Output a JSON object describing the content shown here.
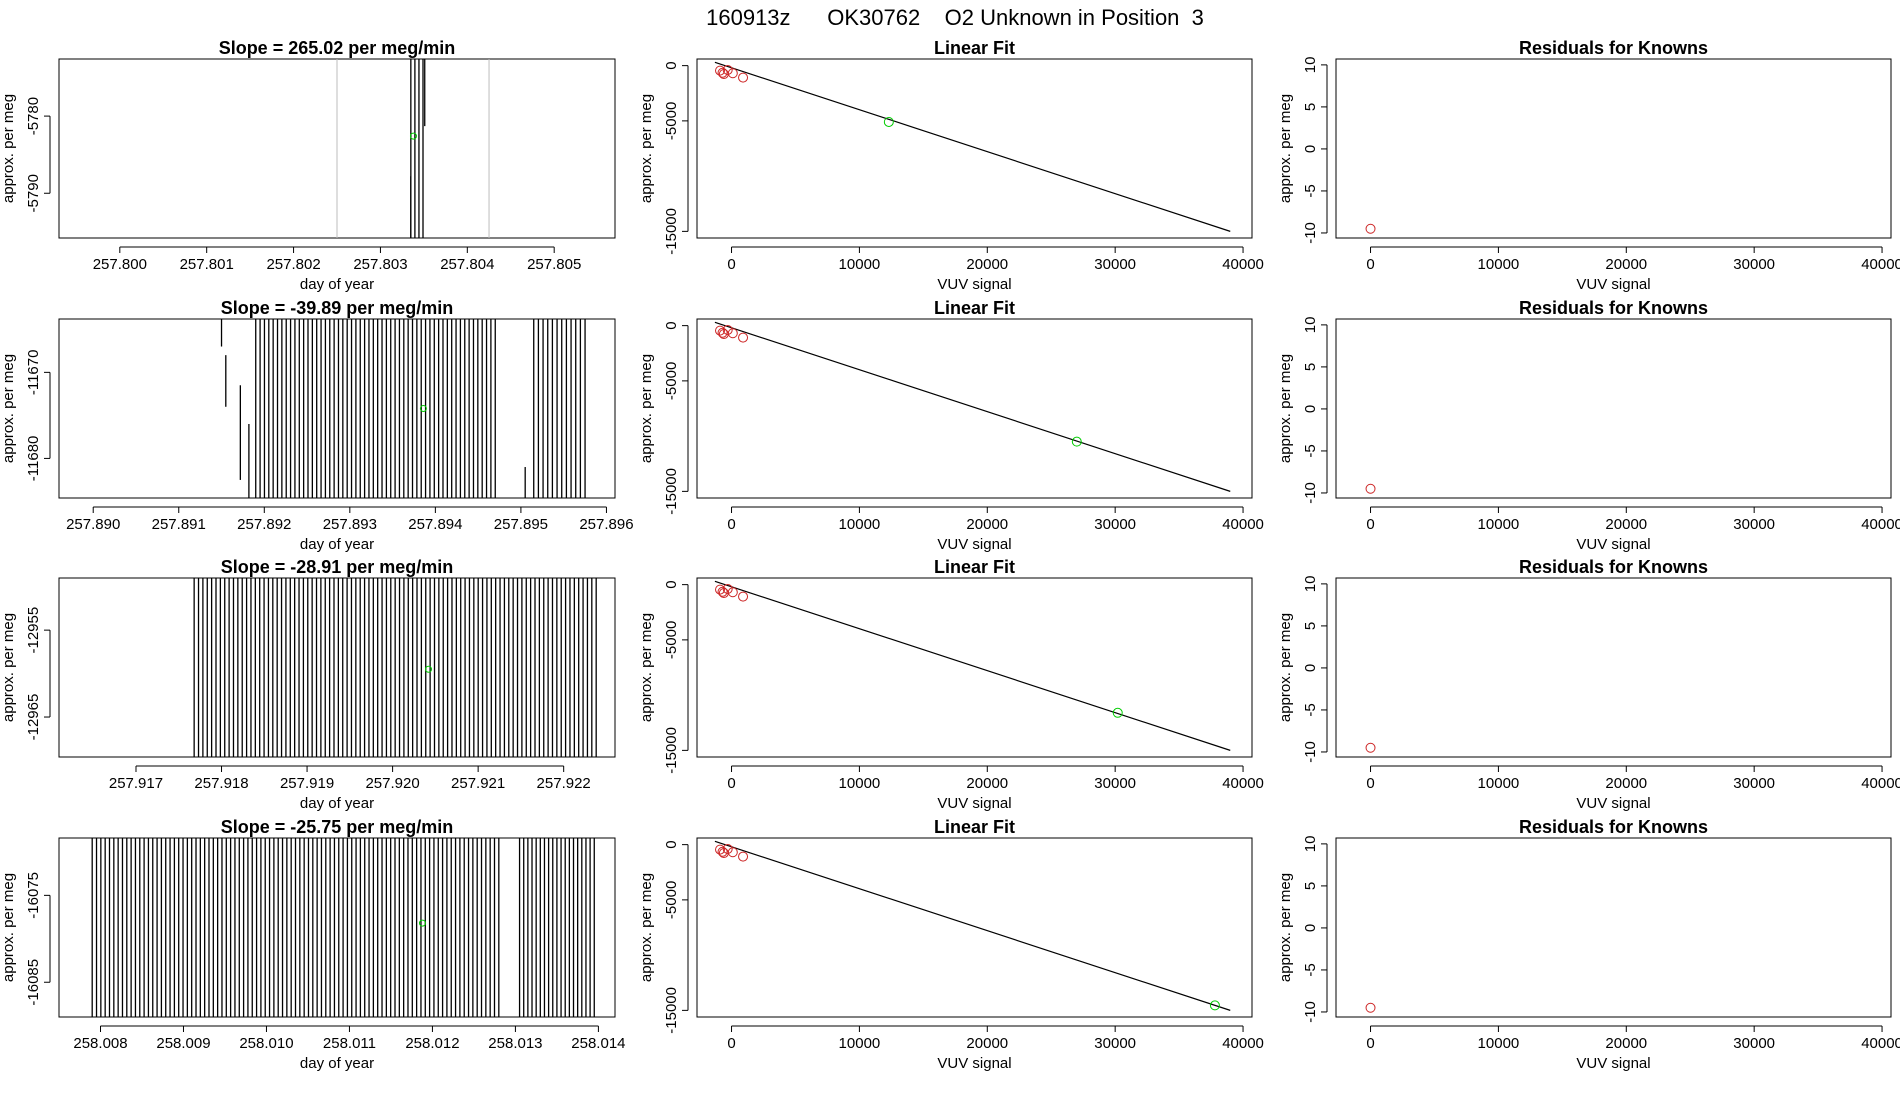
{
  "figure_title": "160913z      OK30762    O2 Unknown in Position  3",
  "colors": {
    "axis": "#000000",
    "line": "#000000",
    "known_point": "#cd2626",
    "unknown_point": "#00cc00",
    "run_line": "#000000",
    "gap_line": "#bdbdbd"
  },
  "chart_data": [
    {
      "type": "line",
      "panel": "drift",
      "title": "Slope =  265.02  per meg/min",
      "xlabel": "day of year",
      "ylabel": "approx. per meg",
      "xlim": [
        257.7993,
        257.8057
      ],
      "ylim": [
        -5795.8,
        -5772.6
      ],
      "xticks": [
        257.8,
        257.801,
        257.802,
        257.803,
        257.804,
        257.805
      ],
      "xtick_labels": [
        "257.800",
        "257.801",
        "257.802",
        "257.803",
        "257.804",
        "257.805"
      ],
      "yticks": [
        -5780,
        -5790
      ],
      "ytick_labels": [
        "-5780",
        "-5790"
      ],
      "gap_lines_x": [
        257.8025,
        257.80425
      ],
      "run_lines": {
        "x_start": 257.80335,
        "x_end": 257.80349,
        "count": 4,
        "y_low": -5795.8,
        "y_high": -5772.6,
        "partial": [
          {
            "x": 257.80335,
            "y_low": -5795.8,
            "y_high": -5787.8
          },
          {
            "x": 257.80351,
            "y_low": -5781.3,
            "y_high": -5772.6
          }
        ]
      },
      "unknown_point": {
        "x": 257.80338,
        "y": -5782.6
      }
    },
    {
      "type": "scatter",
      "panel": "fit",
      "title": "Linear Fit",
      "xlabel": "VUV signal",
      "ylabel": "approx. per meg",
      "xlim": [
        -2700,
        40700
      ],
      "ylim": [
        -15600,
        600
      ],
      "xticks": [
        0,
        10000,
        20000,
        30000,
        40000
      ],
      "xtick_labels": [
        "0",
        "10000",
        "20000",
        "30000",
        "40000"
      ],
      "yticks": [
        0,
        -5000,
        -15000
      ],
      "ytick_labels": [
        "0",
        "-5000",
        "-15000"
      ],
      "fit_line": [
        [
          -1300,
          300
        ],
        [
          39000,
          -15000
        ]
      ],
      "known_points": [
        [
          -900,
          -450
        ],
        [
          -700,
          -650
        ],
        [
          -600,
          -760
        ],
        [
          -300,
          -390
        ],
        [
          100,
          -690
        ],
        [
          900,
          -1080
        ]
      ],
      "unknown_point": [
        12300,
        -5100
      ]
    },
    {
      "type": "scatter",
      "panel": "residuals",
      "title": "Residuals for Knowns",
      "xlabel": "VUV signal",
      "ylabel": "approx. per meg",
      "xlim": [
        -2700,
        40700
      ],
      "ylim": [
        -10.6,
        10.7
      ],
      "xticks": [
        0,
        10000,
        20000,
        30000,
        40000
      ],
      "xtick_labels": [
        "0",
        "10000",
        "20000",
        "30000",
        "40000"
      ],
      "yticks": [
        10,
        5,
        0,
        -5,
        -10
      ],
      "ytick_labels": [
        "10",
        "5",
        "0",
        "-5",
        "-10"
      ],
      "known_points": [
        [
          0,
          -9.5
        ]
      ]
    },
    {
      "type": "line",
      "panel": "drift",
      "title": "Slope =  -39.89  per meg/min",
      "xlabel": "day of year",
      "ylabel": "approx. per meg",
      "xlim": [
        257.8896,
        257.8961
      ],
      "ylim": [
        -11684.6,
        -11663.8
      ],
      "xticks": [
        257.89,
        257.891,
        257.892,
        257.893,
        257.894,
        257.895,
        257.896
      ],
      "xtick_labels": [
        "257.890",
        "257.891",
        "257.892",
        "257.893",
        "257.894",
        "257.895",
        "257.896"
      ],
      "yticks": [
        -11670,
        -11680
      ],
      "ytick_labels": [
        "-11670",
        "-11680"
      ],
      "gap_lines_x": [],
      "run_lines": {
        "x_start": 257.8919,
        "x_end": 257.8947,
        "count": 56,
        "y_low": -11684.6,
        "y_high": -11663.8,
        "partial": [
          {
            "x": 257.8915,
            "y_low": -11667.0,
            "y_high": -11663.8
          },
          {
            "x": 257.89155,
            "y_low": -11674.0,
            "y_high": -11668.0
          },
          {
            "x": 257.89172,
            "y_low": -11682.5,
            "y_high": -11671.5
          },
          {
            "x": 257.89182,
            "y_low": -11684.6,
            "y_high": -11676.0
          }
        ],
        "second_run": {
          "x_start": 257.89515,
          "x_end": 257.89575,
          "count": 12,
          "partial": [
            {
              "x": 257.89505,
              "y_low": -11684.6,
              "y_high": -11681.0
            }
          ]
        }
      },
      "unknown_point": {
        "x": 257.89386,
        "y": -11674.2
      }
    },
    {
      "type": "scatter",
      "panel": "fit",
      "title": "Linear Fit",
      "xlabel": "VUV signal",
      "ylabel": "approx. per meg",
      "xlim": [
        -2700,
        40700
      ],
      "ylim": [
        -15600,
        600
      ],
      "xticks": [
        0,
        10000,
        20000,
        30000,
        40000
      ],
      "xtick_labels": [
        "0",
        "10000",
        "20000",
        "30000",
        "40000"
      ],
      "yticks": [
        0,
        -5000,
        -15000
      ],
      "ytick_labels": [
        "0",
        "-5000",
        "-15000"
      ],
      "fit_line": [
        [
          -1300,
          300
        ],
        [
          39000,
          -15000
        ]
      ],
      "known_points": [
        [
          -900,
          -450
        ],
        [
          -700,
          -650
        ],
        [
          -600,
          -760
        ],
        [
          -300,
          -390
        ],
        [
          100,
          -690
        ],
        [
          900,
          -1080
        ]
      ],
      "unknown_point": [
        27000,
        -10500
      ]
    },
    {
      "type": "scatter",
      "panel": "residuals",
      "title": "Residuals for Knowns",
      "xlabel": "VUV signal",
      "ylabel": "approx. per meg",
      "xlim": [
        -2700,
        40700
      ],
      "ylim": [
        -10.6,
        10.7
      ],
      "xticks": [
        0,
        10000,
        20000,
        30000,
        40000
      ],
      "xtick_labels": [
        "0",
        "10000",
        "20000",
        "30000",
        "40000"
      ],
      "yticks": [
        10,
        5,
        0,
        -5,
        -10
      ],
      "ytick_labels": [
        "10",
        "5",
        "0",
        "-5",
        "-10"
      ],
      "known_points": [
        [
          0,
          -9.5
        ]
      ]
    },
    {
      "type": "line",
      "panel": "drift",
      "title": "Slope =  -28.91  per meg/min",
      "xlabel": "day of year",
      "ylabel": "approx. per meg",
      "xlim": [
        257.9161,
        257.9226
      ],
      "ylim": [
        -12969.6,
        -12949.0
      ],
      "xticks": [
        257.917,
        257.918,
        257.919,
        257.92,
        257.921,
        257.922
      ],
      "xtick_labels": [
        "257.917",
        "257.918",
        "257.919",
        "257.920",
        "257.921",
        "257.922"
      ],
      "yticks": [
        -12955,
        -12965
      ],
      "ytick_labels": [
        "-12955",
        "-12965"
      ],
      "gap_lines_x": [],
      "run_lines": {
        "x_start": 257.91768,
        "x_end": 257.92238,
        "count": 93,
        "y_low": -12969.6,
        "y_high": -12949.0,
        "partial": []
      },
      "unknown_point": {
        "x": 257.92042,
        "y": -12959.5
      }
    },
    {
      "type": "scatter",
      "panel": "fit",
      "title": "Linear Fit",
      "xlabel": "VUV signal",
      "ylabel": "approx. per meg",
      "xlim": [
        -2700,
        40700
      ],
      "ylim": [
        -15600,
        600
      ],
      "xticks": [
        0,
        10000,
        20000,
        30000,
        40000
      ],
      "xtick_labels": [
        "0",
        "10000",
        "20000",
        "30000",
        "40000"
      ],
      "yticks": [
        0,
        -5000,
        -15000
      ],
      "ytick_labels": [
        "0",
        "-5000",
        "-15000"
      ],
      "fit_line": [
        [
          -1300,
          300
        ],
        [
          39000,
          -15000
        ]
      ],
      "known_points": [
        [
          -900,
          -450
        ],
        [
          -700,
          -650
        ],
        [
          -600,
          -760
        ],
        [
          -300,
          -390
        ],
        [
          100,
          -690
        ],
        [
          900,
          -1080
        ]
      ],
      "unknown_point": [
        30200,
        -11600
      ]
    },
    {
      "type": "scatter",
      "panel": "residuals",
      "title": "Residuals for Knowns",
      "xlabel": "VUV signal",
      "ylabel": "approx. per meg",
      "xlim": [
        -2700,
        40700
      ],
      "ylim": [
        -10.6,
        10.7
      ],
      "xticks": [
        0,
        10000,
        20000,
        30000,
        40000
      ],
      "xtick_labels": [
        "0",
        "10000",
        "20000",
        "30000",
        "40000"
      ],
      "yticks": [
        10,
        5,
        0,
        -5,
        -10
      ],
      "ytick_labels": [
        "10",
        "5",
        "0",
        "-5",
        "-10"
      ],
      "known_points": [
        [
          0,
          -9.5
        ]
      ]
    },
    {
      "type": "line",
      "panel": "drift",
      "title": "Slope =  -25.75  per meg/min",
      "xlabel": "day of year",
      "ylabel": "approx. per meg",
      "xlim": [
        258.0075,
        258.0142
      ],
      "ylim": [
        -16089.0,
        -16068.4
      ],
      "xticks": [
        258.008,
        258.009,
        258.01,
        258.011,
        258.012,
        258.013,
        258.014
      ],
      "xtick_labels": [
        "258.008",
        "258.009",
        "258.010",
        "258.011",
        "258.012",
        "258.013",
        "258.014"
      ],
      "yticks": [
        -16075,
        -16085
      ],
      "ytick_labels": [
        "-16075",
        "-16085"
      ],
      "gap_lines_x": [],
      "run_lines": {
        "x_start": 258.0079,
        "x_end": 258.0128,
        "count": 95,
        "y_low": -16089.0,
        "y_high": -16068.4,
        "partial": [],
        "second_run": {
          "x_start": 258.01305,
          "x_end": 258.01395,
          "count": 19,
          "partial": []
        }
      },
      "unknown_point": {
        "x": 258.01188,
        "y": -16078.2
      }
    },
    {
      "type": "scatter",
      "panel": "fit",
      "title": "Linear Fit",
      "xlabel": "VUV signal",
      "ylabel": "approx. per meg",
      "xlim": [
        -2700,
        40700
      ],
      "ylim": [
        -15600,
        600
      ],
      "xticks": [
        0,
        10000,
        20000,
        30000,
        40000
      ],
      "xtick_labels": [
        "0",
        "10000",
        "20000",
        "30000",
        "40000"
      ],
      "yticks": [
        0,
        -5000,
        -15000
      ],
      "ytick_labels": [
        "0",
        "-5000",
        "-15000"
      ],
      "fit_line": [
        [
          -1300,
          300
        ],
        [
          39000,
          -15000
        ]
      ],
      "known_points": [
        [
          -900,
          -450
        ],
        [
          -700,
          -650
        ],
        [
          -600,
          -760
        ],
        [
          -300,
          -390
        ],
        [
          100,
          -690
        ],
        [
          900,
          -1080
        ]
      ],
      "unknown_point": [
        37800,
        -14550
      ]
    },
    {
      "type": "scatter",
      "panel": "residuals",
      "title": "Residuals for Knowns",
      "xlabel": "VUV signal",
      "ylabel": "approx. per meg",
      "xlim": [
        -2700,
        40700
      ],
      "ylim": [
        -10.6,
        10.7
      ],
      "xticks": [
        0,
        10000,
        20000,
        30000,
        40000
      ],
      "xtick_labels": [
        "0",
        "10000",
        "20000",
        "30000",
        "40000"
      ],
      "yticks": [
        10,
        5,
        0,
        -5,
        -10
      ],
      "ytick_labels": [
        "10",
        "5",
        "0",
        "-5",
        "-10"
      ],
      "known_points": [
        [
          0,
          -9.5
        ]
      ]
    }
  ]
}
